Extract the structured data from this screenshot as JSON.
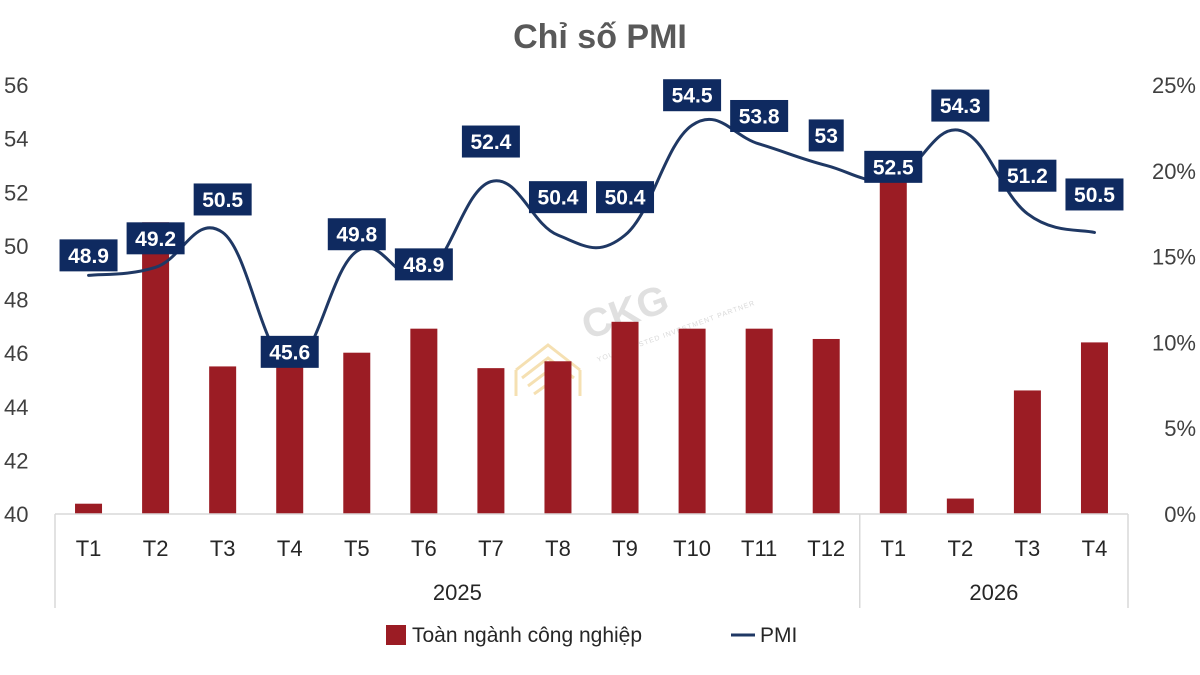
{
  "chart_data": {
    "type": "bar+line",
    "title": "Chỉ số PMI",
    "months": [
      "T1",
      "T2",
      "T3",
      "T4",
      "T5",
      "T6",
      "T7",
      "T8",
      "T9",
      "T10",
      "T11",
      "T12",
      "T1",
      "T2",
      "T3",
      "T4"
    ],
    "years": [
      {
        "label": "2025",
        "count": 12
      },
      {
        "label": "2026",
        "count": 4
      }
    ],
    "series": [
      {
        "name": "Toàn ngành công nghiệp",
        "type": "bar",
        "axis": "right",
        "color": "#9b1c24",
        "values": [
          0.6,
          17.0,
          8.6,
          9.3,
          9.4,
          10.8,
          8.5,
          8.9,
          11.2,
          10.8,
          10.8,
          10.2,
          20.5,
          0.9,
          7.2,
          10.0
        ]
      },
      {
        "name": "PMI",
        "type": "line",
        "axis": "left",
        "color": "#1f3864",
        "values": [
          48.9,
          49.2,
          50.5,
          45.6,
          49.8,
          48.9,
          52.4,
          50.4,
          50.4,
          54.5,
          53.8,
          53,
          52.5,
          54.3,
          51.2,
          50.5
        ],
        "labels": [
          "48.9",
          "49.2",
          "50.5",
          "45.6",
          "49.8",
          "48.9",
          "52.4",
          "50.4",
          "50.4",
          "54.5",
          "53.8",
          "53",
          "52.5",
          "54.3",
          "51.2",
          "50.5"
        ]
      }
    ],
    "y_left": {
      "min": 40,
      "max": 56,
      "ticks": [
        "40",
        "42",
        "44",
        "46",
        "48",
        "50",
        "52",
        "54",
        "56"
      ]
    },
    "y_right": {
      "min": 0,
      "max": 25,
      "ticks": [
        "0%",
        "5%",
        "10%",
        "15%",
        "20%",
        "25%"
      ]
    },
    "grid": false,
    "legend": "bottom-center",
    "label_color": "#0f2a60"
  },
  "watermark": {
    "text": "CKG",
    "subtext": "YOUR TRUSTED INVESTMENT PARTNER"
  }
}
